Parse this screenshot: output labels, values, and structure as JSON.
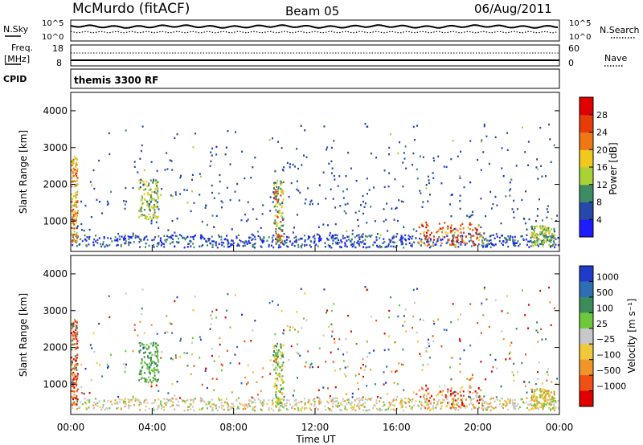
{
  "header": {
    "title": "McMurdo (fitACF)",
    "beam": "Beam 05",
    "date": "06/Aug/2011"
  },
  "top_panels": {
    "nsky_label": "N.Sky",
    "nsearch_label": "N.Search",
    "noise_ticks_left": [
      "10^5",
      "10^0"
    ],
    "noise_ticks_right": [
      "10^5",
      "10^0"
    ],
    "freq_label": "Freq.",
    "freq_unit": "[MHz]",
    "freq_ticks": [
      "18",
      "8"
    ],
    "nave_label": "Nave",
    "nave_ticks": [
      "60",
      "0"
    ],
    "cpid_label": "CPID",
    "cpid_value": "themis 3300 RF"
  },
  "chart_data": [
    {
      "type": "heatmap",
      "name": "power",
      "ylabel": "Slant Range [km]",
      "xlabel": "Time UT",
      "ylim": [
        180,
        4500
      ],
      "yticks": [
        1000,
        2000,
        3000,
        4000
      ],
      "xticks": [
        "00:00",
        "04:00",
        "08:00",
        "12:00",
        "16:00",
        "20:00",
        "00:00"
      ],
      "xlim_hours": [
        0,
        24
      ],
      "colorbar": {
        "label": "Power [dB]",
        "ticks": [
          "4",
          "8",
          "12",
          "16",
          "20",
          "24",
          "28"
        ],
        "colors": [
          "#1c1cff",
          "#2648a8",
          "#3d8c64",
          "#a8d236",
          "#f0c81e",
          "#f07814",
          "#e63c0a",
          "#e00000"
        ]
      }
    },
    {
      "type": "heatmap",
      "name": "velocity",
      "ylabel": "Slant Range [km]",
      "xlabel": "Time UT",
      "ylim": [
        180,
        4500
      ],
      "yticks": [
        1000,
        2000,
        3000,
        4000
      ],
      "xticks": [
        "00:00",
        "04:00",
        "08:00",
        "12:00",
        "16:00",
        "20:00",
        "00:00"
      ],
      "xlim_hours": [
        0,
        24
      ],
      "colorbar": {
        "label": "Velocity [m s⁻¹]",
        "ticks": [
          "1000",
          "500",
          "100",
          "25",
          "−25",
          "−100",
          "−500",
          "−1000"
        ],
        "colors": [
          "#1e3cc8",
          "#2e6eb4",
          "#3c8c5a",
          "#6ec83c",
          "#c8c8c8",
          "#f0c83c",
          "#f09628",
          "#f05014",
          "#e00000"
        ]
      }
    }
  ]
}
